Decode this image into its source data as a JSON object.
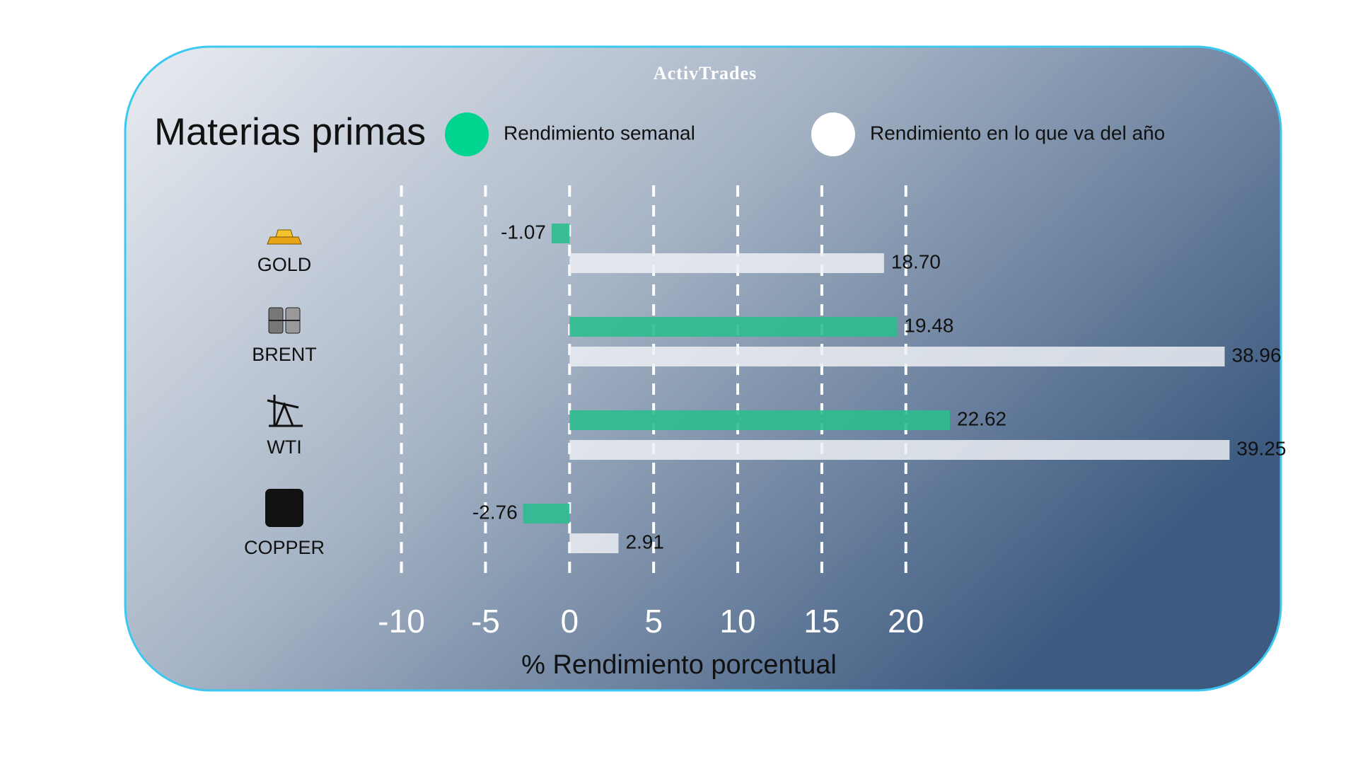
{
  "chart_data": {
    "type": "bar",
    "orientation": "horizontal",
    "logo": "ActivTrades",
    "title": "Materias primas",
    "x_label": "% Rendimiento porcentual",
    "categories": [
      "GOLD",
      "BRENT",
      "WTI",
      "COPPER"
    ],
    "series": [
      {
        "name": "Rendimiento semanal",
        "color": "#2ebd8f",
        "values": [
          -1.07,
          19.48,
          22.62,
          -2.76
        ]
      },
      {
        "name": "Rendimiento en lo que va del año",
        "color": "#eceff3",
        "values": [
          18.7,
          38.96,
          39.25,
          2.91
        ],
        "value_labels": [
          "18.70",
          "38.96",
          "39.25",
          "2.91"
        ]
      }
    ],
    "xlim": [
      -12,
      41
    ],
    "xticks": [
      -10,
      -5,
      0,
      5,
      10,
      15,
      20
    ],
    "grid": true
  }
}
